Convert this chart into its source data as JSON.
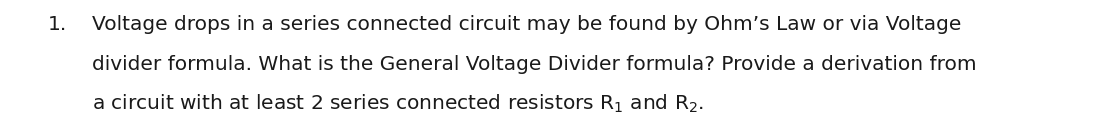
{
  "number": "1.",
  "line1": "Voltage drops in a series connected circuit may be found by Ohm’s Law or via Voltage",
  "line2": "divider formula. What is the General Voltage Divider formula? Provide a derivation from",
  "line3_main": "a circuit with at least 2 series connected resistors R",
  "line3_sub1": "1",
  "line3_mid": " and R",
  "line3_sub2": "2",
  "line3_end": ".",
  "font_size": 14.5,
  "font_family": "DejaVu Sans",
  "text_color": "#1a1a1a",
  "background_color": "#ffffff",
  "fig_width": 11.0,
  "fig_height": 1.32,
  "dpi": 100
}
